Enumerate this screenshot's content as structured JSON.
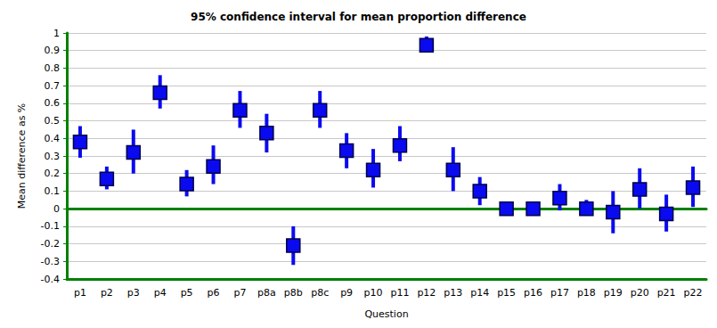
{
  "chart_data": {
    "type": "scatter",
    "title": "95% confidence interval for mean proportion difference",
    "x_label": "Question",
    "y_label": "Mean difference as %",
    "categories": [
      "p1",
      "p2",
      "p3",
      "p4",
      "p5",
      "p6",
      "p7",
      "p8a",
      "p8b",
      "p8c",
      "p9",
      "p10",
      "p11",
      "p12",
      "p13",
      "p14",
      "p15",
      "p16",
      "p17",
      "p18",
      "p19",
      "p20",
      "p21",
      "p22"
    ],
    "values": [
      0.38,
      0.17,
      0.32,
      0.66,
      0.14,
      0.24,
      0.56,
      0.43,
      -0.21,
      0.56,
      0.33,
      0.22,
      0.36,
      0.93,
      0.22,
      0.1,
      0.0,
      0.0,
      0.06,
      0.0,
      -0.02,
      0.11,
      -0.03,
      0.12
    ],
    "lower": [
      0.29,
      0.11,
      0.2,
      0.57,
      0.07,
      0.14,
      0.46,
      0.32,
      -0.32,
      0.46,
      0.23,
      0.12,
      0.27,
      0.89,
      0.1,
      0.02,
      0.0,
      0.0,
      -0.01,
      -0.04,
      -0.14,
      0.0,
      -0.13,
      0.01
    ],
    "upper": [
      0.47,
      0.24,
      0.45,
      0.76,
      0.22,
      0.36,
      0.67,
      0.54,
      -0.1,
      0.67,
      0.43,
      0.34,
      0.47,
      0.98,
      0.35,
      0.18,
      0.0,
      0.0,
      0.14,
      0.05,
      0.1,
      0.23,
      0.08,
      0.24
    ],
    "color": "#0a0af0",
    "marker": "square",
    "ylim": [
      -0.4,
      1
    ],
    "yticks": [
      -0.4,
      -0.3,
      -0.2,
      -0.1,
      0,
      0.1,
      0.2,
      0.3,
      0.4,
      0.5,
      0.6,
      0.7,
      0.8,
      0.9,
      1
    ],
    "grid": true
  }
}
